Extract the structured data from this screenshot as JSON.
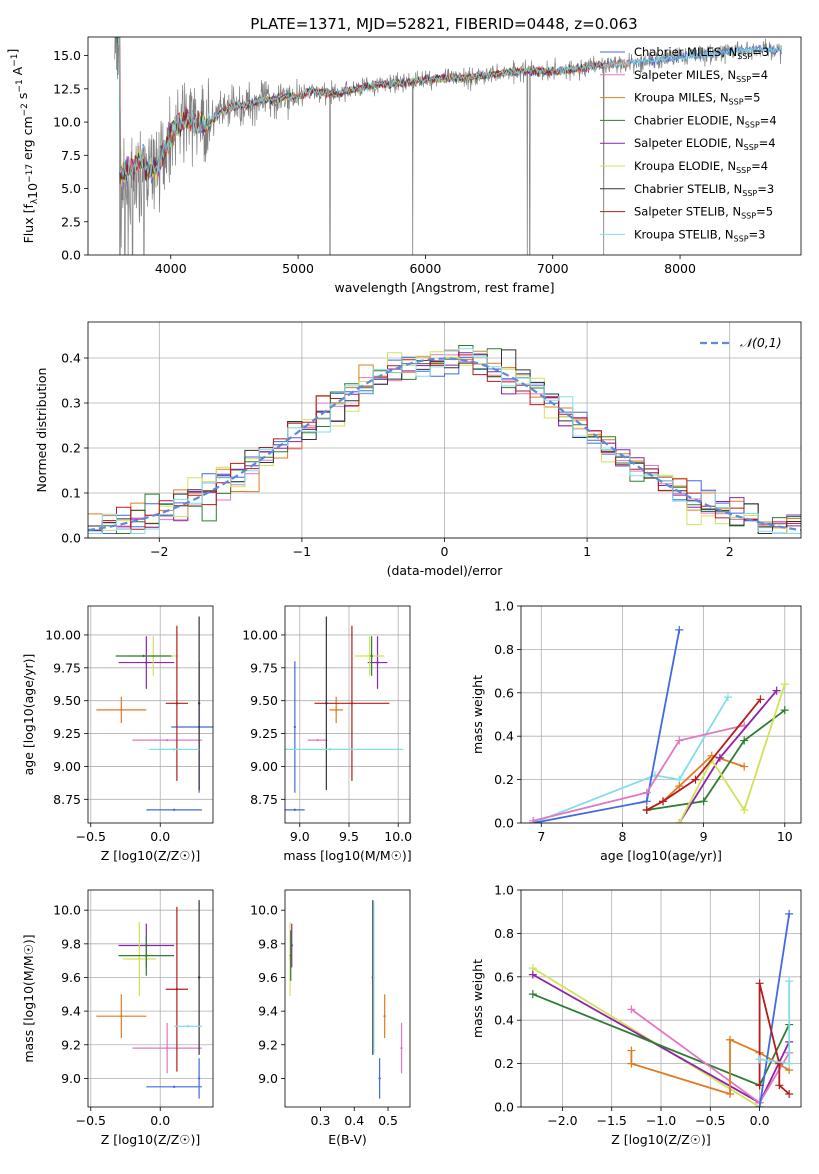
{
  "colors": {
    "Chabrier MILES": "#4169e1",
    "Salpeter MILES": "#e377c2",
    "Kroupa MILES": "#e07b20",
    "Chabrier ELODIE": "#2e7d32",
    "Salpeter ELODIE": "#8e24aa",
    "Kroupa ELODIE": "#d4e157",
    "Chabrier STELIB": "#333333",
    "Salpeter STELIB": "#b71c1c",
    "Kroupa STELIB": "#80deea",
    "data": "#808080",
    "normal": "#5b8bd9"
  },
  "chart_data": [
    {
      "id": "spectrum",
      "type": "line",
      "title": "PLATE=1371, MJD=52821, FIBERID=0448, z=0.063",
      "xlabel": "wavelength [Angstrom, rest frame]",
      "ylabel": "Flux [f_λ10^-17 erg cm^-2 s^-1 A^-1]",
      "xlim": [
        3350,
        8950
      ],
      "ylim": [
        0,
        16.4
      ],
      "xticks": [
        4000,
        5000,
        6000,
        7000,
        8000
      ],
      "yticks": [
        0.0,
        2.5,
        5.0,
        7.5,
        10.0,
        12.5,
        15.0
      ],
      "legend_position": "top-right",
      "legend": [
        {
          "name": "Chabrier MILES, N_SSP=3"
        },
        {
          "name": "Salpeter MILES, N_SSP=4"
        },
        {
          "name": "Kroupa MILES, N_SSP=5"
        },
        {
          "name": "Chabrier ELODIE, N_SSP=4"
        },
        {
          "name": "Salpeter ELODIE, N_SSP=4"
        },
        {
          "name": "Kroupa ELODIE, N_SSP=4"
        },
        {
          "name": "Chabrier STELIB, N_SSP=3"
        },
        {
          "name": "Salpeter STELIB, N_SSP=5"
        },
        {
          "name": "Kroupa STELIB, N_SSP=3"
        }
      ],
      "continuum": [
        [
          3600,
          4.5
        ],
        [
          3700,
          5.0
        ],
        [
          3800,
          6.2
        ],
        [
          3900,
          6.8
        ],
        [
          4000,
          9.0
        ],
        [
          4100,
          10.2
        ],
        [
          4200,
          10.0
        ],
        [
          4300,
          9.8
        ],
        [
          4400,
          10.8
        ],
        [
          4500,
          11.2
        ],
        [
          4600,
          11.3
        ],
        [
          4700,
          11.6
        ],
        [
          4800,
          11.7
        ],
        [
          4900,
          11.9
        ],
        [
          5000,
          11.9
        ],
        [
          5100,
          12.4
        ],
        [
          5200,
          12.2
        ],
        [
          5300,
          12.1
        ],
        [
          5400,
          12.4
        ],
        [
          5500,
          12.6
        ],
        [
          5600,
          12.8
        ],
        [
          5800,
          12.9
        ],
        [
          6000,
          13.2
        ],
        [
          6200,
          13.3
        ],
        [
          6400,
          13.4
        ],
        [
          6600,
          13.7
        ],
        [
          6800,
          13.9
        ],
        [
          7000,
          13.8
        ],
        [
          7200,
          14.0
        ],
        [
          7400,
          14.3
        ],
        [
          7600,
          14.5
        ],
        [
          7800,
          14.6
        ],
        [
          8000,
          14.9
        ],
        [
          8200,
          15.1
        ],
        [
          8400,
          15.3
        ],
        [
          8600,
          15.5
        ],
        [
          8800,
          15.4
        ]
      ],
      "data_deep_lines": [
        3600,
        3640,
        3700,
        3790,
        5250,
        5900,
        6800,
        6820,
        7400
      ]
    },
    {
      "id": "residuals",
      "type": "histogram",
      "xlabel": "(data-model)/error",
      "ylabel": "Normed distribution",
      "xlim": [
        -2.5,
        2.5
      ],
      "ylim": [
        0,
        0.48
      ],
      "xticks": [
        -2,
        -1,
        0,
        1,
        2
      ],
      "yticks": [
        0.0,
        0.1,
        0.2,
        0.3,
        0.4
      ],
      "legend_position": "top-right",
      "normal_label": "𝒩(0,1)"
    },
    {
      "id": "age_vs_Z",
      "type": "scatter",
      "xlabel": "Z [log10(Z/Z☉)]",
      "ylabel": "age [log10(age/yr)]",
      "xlim": [
        -0.52,
        0.38
      ],
      "ylim": [
        8.57,
        10.22
      ],
      "xticks": [
        -0.5,
        0.0
      ],
      "xticklabels": [
        "−0.5",
        "0.0"
      ],
      "yticks": [
        8.75,
        9.0,
        9.25,
        9.5,
        9.75,
        10.0
      ],
      "points": [
        {
          "s": "Chabrier MILES",
          "x": 0.28,
          "y": 9.3,
          "xe": 0.2,
          "ye": 0.5
        },
        {
          "s": "Chabrier MILES",
          "x": 0.1,
          "y": 8.67,
          "xe": 0.2,
          "ye": 0.0
        },
        {
          "s": "Salpeter MILES",
          "x": 0.05,
          "y": 9.2,
          "xe": 0.25,
          "ye": 0.0
        },
        {
          "s": "Kroupa MILES",
          "x": -0.28,
          "y": 9.43,
          "xe": 0.18,
          "ye": 0.1
        },
        {
          "s": "Salpeter ELODIE",
          "x": -0.1,
          "y": 9.79,
          "xe": 0.2,
          "ye": 0.2
        },
        {
          "s": "Kroupa ELODIE",
          "x": -0.05,
          "y": 9.84,
          "xe": 0.18,
          "ye": 0.15
        },
        {
          "s": "Chabrier ELODIE",
          "x": -0.12,
          "y": 9.84,
          "xe": 0.2,
          "ye": 0.0
        },
        {
          "s": "Salpeter STELIB",
          "x": 0.12,
          "y": 9.48,
          "xe": 0.08,
          "ye": 0.59
        },
        {
          "s": "Chabrier STELIB",
          "x": 0.28,
          "y": 9.48,
          "xe": 0.0,
          "ye": 0.66
        },
        {
          "s": "Kroupa STELIB",
          "x": 0.1,
          "y": 9.13,
          "xe": 0.18,
          "ye": 0.0
        }
      ]
    },
    {
      "id": "age_vs_mass",
      "type": "scatter",
      "xlabel": "mass [log10(M/M☉)]",
      "xlim": [
        8.85,
        10.12
      ],
      "ylim": [
        8.57,
        10.22
      ],
      "xticks": [
        9.0,
        9.5,
        10.0
      ],
      "yticks": [
        8.75,
        9.0,
        9.25,
        9.5,
        9.75,
        10.0
      ],
      "points": [
        {
          "s": "Chabrier MILES",
          "x": 8.95,
          "y": 8.67,
          "xe": 0.1,
          "ye": 0.0
        },
        {
          "s": "Chabrier MILES",
          "x": 8.95,
          "y": 9.3,
          "xe": 0.0,
          "ye": 0.5
        },
        {
          "s": "Salpeter MILES",
          "x": 9.18,
          "y": 9.2,
          "xe": 0.1,
          "ye": 0.0
        },
        {
          "s": "Kroupa MILES",
          "x": 9.37,
          "y": 9.43,
          "xe": 0.07,
          "ye": 0.1
        },
        {
          "s": "Salpeter ELODIE",
          "x": 9.79,
          "y": 9.79,
          "xe": 0.1,
          "ye": 0.2
        },
        {
          "s": "Kroupa ELODIE",
          "x": 9.71,
          "y": 9.84,
          "xe": 0.15,
          "ye": 0.15
        },
        {
          "s": "Chabrier ELODIE",
          "x": 9.73,
          "y": 9.84,
          "xe": 0.0,
          "ye": 0.15
        },
        {
          "s": "Salpeter STELIB",
          "x": 9.53,
          "y": 9.48,
          "xe": 0.38,
          "ye": 0.59
        },
        {
          "s": "Chabrier STELIB",
          "x": 9.27,
          "y": 9.48,
          "xe": 0.0,
          "ye": 0.66
        },
        {
          "s": "Kroupa STELIB",
          "x": 9.31,
          "y": 9.13,
          "xe": 0.74,
          "ye": 0.0
        }
      ]
    },
    {
      "id": "massweight_vs_age",
      "type": "line",
      "xlabel": "age [log10(age/yr)]",
      "ylabel": "mass weight",
      "xlim": [
        6.75,
        10.2
      ],
      "ylim": [
        0,
        1.0
      ],
      "xticks": [
        7,
        8,
        9,
        10
      ],
      "yticks": [
        0.0,
        0.2,
        0.4,
        0.6,
        0.8,
        1.0
      ],
      "series": [
        {
          "s": "Kroupa STELIB",
          "x": [
            6.9,
            8.4,
            8.7,
            9.3
          ],
          "y": [
            0.0,
            0.22,
            0.2,
            0.58
          ]
        },
        {
          "s": "Chabrier MILES",
          "x": [
            6.9,
            8.3,
            8.7
          ],
          "y": [
            0.0,
            0.1,
            0.89
          ]
        },
        {
          "s": "Salpeter MILES",
          "x": [
            6.9,
            8.3,
            8.7,
            9.5
          ],
          "y": [
            0.01,
            0.14,
            0.38,
            0.45
          ]
        },
        {
          "s": "Kroupa MILES",
          "x": [
            8.3,
            8.5,
            8.7,
            9.1,
            9.5
          ],
          "y": [
            0.06,
            0.1,
            0.17,
            0.31,
            0.26
          ]
        },
        {
          "s": "Chabrier ELODIE",
          "x": [
            8.3,
            9.0,
            9.5,
            10.0
          ],
          "y": [
            0.06,
            0.1,
            0.38,
            0.52
          ]
        },
        {
          "s": "Salpeter ELODIE",
          "x": [
            8.7,
            9.2,
            9.9
          ],
          "y": [
            0.0,
            0.3,
            0.61
          ]
        },
        {
          "s": "Kroupa ELODIE",
          "x": [
            8.7,
            9.1,
            9.5,
            10.0
          ],
          "y": [
            0.0,
            0.29,
            0.06,
            0.64
          ]
        },
        {
          "s": "Salpeter STELIB",
          "x": [
            8.3,
            8.5,
            8.9,
            9.7
          ],
          "y": [
            0.06,
            0.1,
            0.2,
            0.57
          ]
        }
      ]
    },
    {
      "id": "mass_vs_Z",
      "type": "scatter",
      "xlabel": "Z [log10(Z/Z☉)]",
      "ylabel": "mass [log10(M/M☉)]",
      "xlim": [
        -0.52,
        0.38
      ],
      "ylim": [
        8.83,
        10.12
      ],
      "xticks": [
        -0.5,
        0.0
      ],
      "xticklabels": [
        "−0.5",
        "0.0"
      ],
      "yticks": [
        9.0,
        9.2,
        9.4,
        9.6,
        9.8,
        10.0
      ],
      "points": [
        {
          "s": "Chabrier MILES",
          "x": 0.1,
          "y": 8.95,
          "xe": 0.2,
          "ye": 0.0
        },
        {
          "s": "Chabrier MILES",
          "x": 0.28,
          "y": 9.0,
          "xe": 0.0,
          "ye": 0.12
        },
        {
          "s": "Salpeter MILES",
          "x": 0.05,
          "y": 9.18,
          "xe": 0.25,
          "ye": 0.15
        },
        {
          "s": "Kroupa MILES",
          "x": -0.28,
          "y": 9.37,
          "xe": 0.18,
          "ye": 0.13
        },
        {
          "s": "Salpeter ELODIE",
          "x": -0.1,
          "y": 9.79,
          "xe": 0.2,
          "ye": 0.13
        },
        {
          "s": "Kroupa ELODIE",
          "x": -0.15,
          "y": 9.71,
          "xe": 0.12,
          "ye": 0.22
        },
        {
          "s": "Chabrier ELODIE",
          "x": -0.1,
          "y": 9.73,
          "xe": 0.2,
          "ye": 0.12
        },
        {
          "s": "Salpeter STELIB",
          "x": 0.12,
          "y": 9.53,
          "xe": 0.08,
          "ye": 0.49
        },
        {
          "s": "Chabrier STELIB",
          "x": 0.28,
          "y": 9.6,
          "xe": 0.0,
          "ye": 0.46
        },
        {
          "s": "Kroupa STELIB",
          "x": 0.2,
          "y": 9.31,
          "xe": 0.1,
          "ye": 0.0
        }
      ]
    },
    {
      "id": "mass_vs_EBV",
      "type": "scatter",
      "xlabel": "E(B-V)",
      "xlim": [
        0.195,
        0.565
      ],
      "ylim": [
        8.83,
        10.12
      ],
      "xticks": [
        0.3,
        0.4,
        0.5
      ],
      "yticks": [
        9.0,
        9.2,
        9.4,
        9.6,
        9.8,
        10.0
      ],
      "points": [
        {
          "s": "Kroupa ELODIE",
          "x": 0.21,
          "y": 9.71,
          "xe": 0.0,
          "ye": 0.22
        },
        {
          "s": "Salpeter ELODIE",
          "x": 0.215,
          "y": 9.79,
          "xe": 0.0,
          "ye": 0.13
        },
        {
          "s": "Chabrier ELODIE",
          "x": 0.212,
          "y": 9.73,
          "xe": 0.0,
          "ye": 0.15
        },
        {
          "s": "Chabrier STELIB",
          "x": 0.455,
          "y": 9.6,
          "xe": 0.0,
          "ye": 0.46
        },
        {
          "s": "Kroupa STELIB",
          "x": 0.458,
          "y": 9.6,
          "xe": 0.0,
          "ye": 0.45
        },
        {
          "s": "Kroupa MILES",
          "x": 0.49,
          "y": 9.37,
          "xe": 0.0,
          "ye": 0.13
        },
        {
          "s": "Chabrier MILES",
          "x": 0.475,
          "y": 9.0,
          "xe": 0.0,
          "ye": 0.12
        },
        {
          "s": "Salpeter MILES",
          "x": 0.54,
          "y": 9.18,
          "xe": 0.0,
          "ye": 0.15
        }
      ]
    },
    {
      "id": "massweight_vs_Z",
      "type": "line",
      "xlabel": "Z [log10(Z/Z☉)]",
      "ylabel": "mass weight",
      "xlim": [
        -2.42,
        0.42
      ],
      "ylim": [
        0,
        1.0
      ],
      "xticks": [
        -2.0,
        -1.5,
        -1.0,
        -0.5,
        0.0
      ],
      "xticklabels": [
        "−2.0",
        "−1.5",
        "−1.0",
        "−0.5",
        "0.0"
      ],
      "yticks": [
        0.0,
        0.2,
        0.4,
        0.6,
        0.8,
        1.0
      ],
      "series": [
        {
          "s": "Kroupa ELODIE",
          "x": [
            -2.3,
            0.0
          ],
          "y": [
            0.64,
            0.0
          ]
        },
        {
          "s": "Salpeter ELODIE",
          "x": [
            -2.3,
            0.0,
            0.3
          ],
          "y": [
            0.61,
            0.02,
            0.3
          ]
        },
        {
          "s": "Chabrier ELODIE",
          "x": [
            -2.3,
            0.0,
            0.3
          ],
          "y": [
            0.52,
            0.1,
            0.38
          ]
        },
        {
          "s": "Salpeter MILES",
          "x": [
            -1.3,
            0.0,
            0.3
          ],
          "y": [
            0.45,
            0.02,
            0.25
          ]
        },
        {
          "s": "Kroupa MILES",
          "x": [
            -1.3,
            -1.3,
            -0.3,
            -0.3,
            0.0,
            0.3
          ],
          "y": [
            0.26,
            0.2,
            0.06,
            0.31,
            0.25,
            0.17
          ]
        },
        {
          "s": "Chabrier MILES",
          "x": [
            0.0,
            0.3
          ],
          "y": [
            0.0,
            0.89
          ]
        },
        {
          "s": "Salpeter STELIB",
          "x": [
            0.0,
            0.0,
            0.2,
            0.2,
            0.3
          ],
          "y": [
            0.1,
            0.57,
            0.2,
            0.1,
            0.06
          ]
        },
        {
          "s": "Kroupa STELIB",
          "x": [
            0.0,
            0.3,
            0.3
          ],
          "y": [
            0.22,
            0.2,
            0.58
          ]
        }
      ]
    }
  ]
}
